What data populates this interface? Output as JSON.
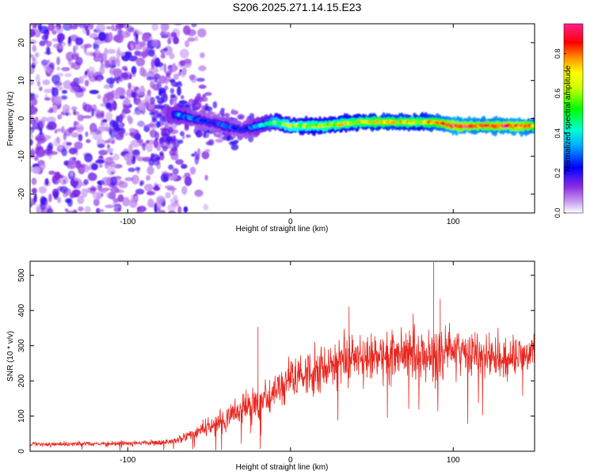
{
  "title": "S206.2025.271.14.15.E23",
  "chart_data": [
    {
      "type": "heatmap",
      "name": "spectrogram",
      "xlabel": "Height of straight line (km)",
      "ylabel": "Frequency (Hz)",
      "xlim": [
        -160,
        150
      ],
      "ylim": [
        -25,
        25
      ],
      "xticks": [
        -100,
        0,
        100
      ],
      "xtick_labels": [
        "-100",
        "0",
        "100"
      ],
      "yticks": [
        -20,
        -10,
        0,
        10,
        20
      ],
      "ytick_labels": [
        "-20",
        "-10",
        "0",
        "10",
        "20"
      ],
      "colorbar": {
        "label": "Normalized spectral amplitude",
        "range": [
          0,
          0.95
        ],
        "ticks": [
          0.0,
          0.2,
          0.4,
          0.6,
          0.8
        ],
        "tick_labels": [
          "0.0",
          "0.2",
          "0.4",
          "0.6",
          "0.8"
        ],
        "colors": [
          "#ffffff",
          "#8a2be2",
          "#0000ff",
          "#00ffff",
          "#00ff00",
          "#ffff00",
          "#ff8000",
          "#ff0000",
          "#ff00ff"
        ]
      },
      "signal_track": {
        "description": "dominant frequency track along straight line",
        "x": [
          -70,
          -60,
          -50,
          -40,
          -30,
          -20,
          -10,
          0,
          20,
          40,
          60,
          80,
          90,
          100,
          120,
          140,
          150
        ],
        "y": [
          1,
          0,
          -1,
          -2,
          -3,
          -2,
          -1,
          -2,
          -2,
          -1,
          -1,
          -1,
          -1,
          -2,
          -2,
          -2,
          -2
        ],
        "peak_amplitude": [
          0.35,
          0.3,
          0.25,
          0.3,
          0.25,
          0.35,
          0.55,
          0.6,
          0.65,
          0.7,
          0.75,
          0.7,
          0.8,
          0.9,
          0.85,
          0.9,
          0.8
        ]
      },
      "noise_region": {
        "x_range": [
          -160,
          -70
        ],
        "amplitude_range": [
          0.05,
          0.2
        ]
      }
    },
    {
      "type": "line",
      "name": "snr",
      "xlabel": "Height of straight line (km)",
      "ylabel": "SNR (10 * v/v)",
      "xlim": [
        -160,
        150
      ],
      "ylim": [
        0,
        540
      ],
      "xticks": [
        -100,
        0,
        100
      ],
      "xtick_labels": [
        "-100",
        "0",
        "100"
      ],
      "yticks": [
        0,
        100,
        200,
        300,
        400,
        500
      ],
      "ytick_labels": [
        "0",
        "100",
        "200",
        "300",
        "400",
        "500"
      ],
      "color": "#e8261e",
      "envelope": {
        "x": [
          -160,
          -140,
          -120,
          -100,
          -80,
          -70,
          -60,
          -50,
          -40,
          -30,
          -20,
          -10,
          0,
          10,
          20,
          30,
          40,
          50,
          60,
          70,
          80,
          90,
          100,
          110,
          120,
          130,
          140,
          150
        ],
        "mean": [
          20,
          20,
          22,
          22,
          25,
          30,
          50,
          70,
          95,
          120,
          140,
          170,
          200,
          225,
          240,
          255,
          265,
          270,
          275,
          275,
          280,
          275,
          280,
          270,
          270,
          265,
          270,
          280
        ],
        "spread": [
          10,
          10,
          10,
          12,
          12,
          18,
          30,
          40,
          55,
          60,
          70,
          80,
          90,
          95,
          100,
          100,
          110,
          110,
          110,
          115,
          120,
          130,
          110,
          100,
          100,
          90,
          80,
          70
        ]
      },
      "spikes": [
        {
          "x": -20,
          "y": 353
        },
        {
          "x": 88,
          "y": 537
        },
        {
          "x": 92,
          "y": 432
        },
        {
          "x": 36,
          "y": 410
        }
      ]
    }
  ]
}
